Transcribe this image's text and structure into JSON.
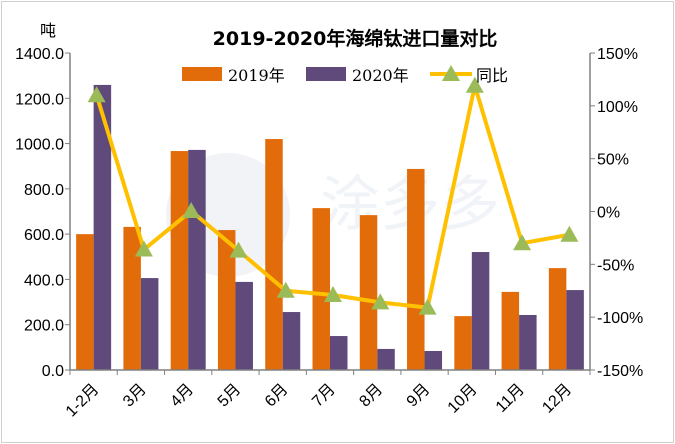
{
  "chart_data": {
    "type": "bar",
    "title": "2019-2020年海绵钛进口量对比",
    "ylabel": "吨",
    "y2label": "",
    "categories": [
      "1-2月",
      "3月",
      "4月",
      "5月",
      "6月",
      "7月",
      "8月",
      "9月",
      "10月",
      "11月",
      "12月"
    ],
    "series": [
      {
        "name": "2019年",
        "type": "bar",
        "axis": "left",
        "color": "#E36C0A",
        "values": [
          600,
          632,
          967,
          618,
          1020,
          715,
          684,
          888,
          238,
          345,
          450
        ]
      },
      {
        "name": "2020年",
        "type": "bar",
        "axis": "left",
        "color": "#604A7B",
        "values": [
          1259,
          406,
          972,
          389,
          256,
          150,
          93,
          84,
          521,
          243,
          353
        ]
      },
      {
        "name": "同比",
        "type": "line",
        "axis": "right",
        "color": "#FFC000",
        "marker_color": "#9BBB59",
        "marker": "triangle",
        "values": [
          110,
          -36,
          0.5,
          -37,
          -75,
          -79,
          -86,
          -91,
          119,
          -30,
          -22
        ]
      }
    ],
    "ylim": [
      0,
      1400
    ],
    "yticks": [
      "0.0",
      "200.0",
      "400.0",
      "600.0",
      "800.0",
      "1000.0",
      "1200.0",
      "1400.0"
    ],
    "y2lim": [
      -150,
      150
    ],
    "y2ticks": [
      "-150%",
      "-100%",
      "-50%",
      "0%",
      "50%",
      "100%",
      "150%"
    ],
    "legend_position": "top",
    "grid": false
  },
  "watermark": "涂多多 tuduoduo.com"
}
